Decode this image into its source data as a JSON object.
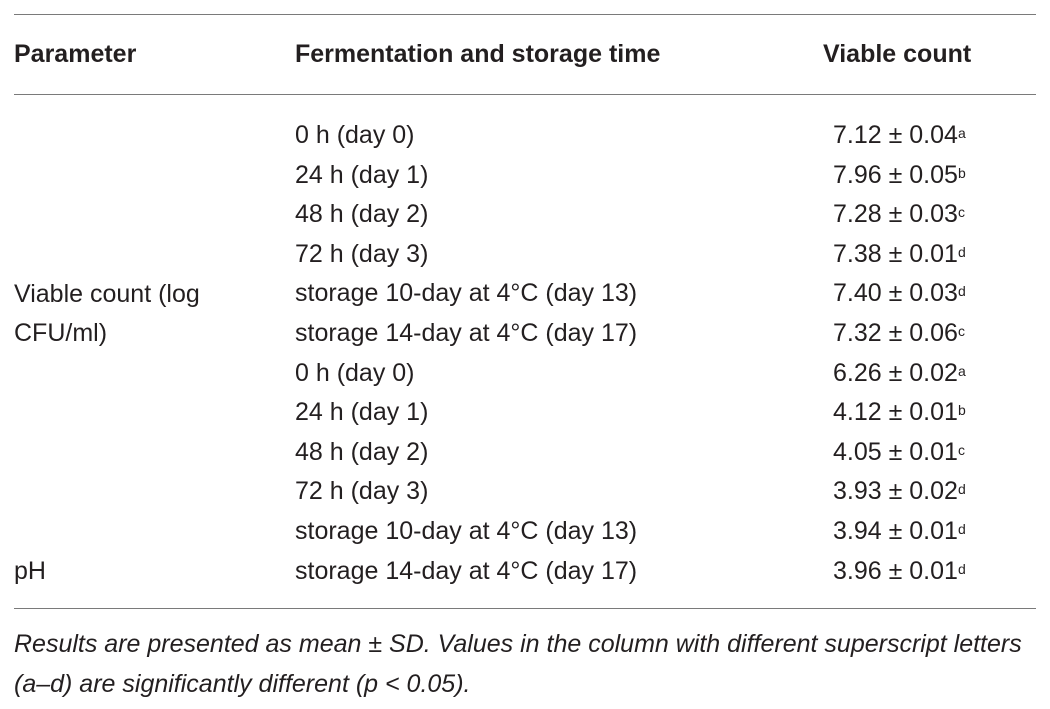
{
  "table": {
    "headers": {
      "parameter": "Parameter",
      "time": "Fermentation and storage time",
      "viable": "Viable count"
    },
    "parameter_labels": {
      "viable_line1": "Viable count (log",
      "viable_line2": "CFU/ml)",
      "ph": "pH"
    },
    "rows": [
      {
        "time": "0 h (day 0)",
        "value": "7.12 ± 0.04",
        "sup": "a"
      },
      {
        "time": "24 h (day 1)",
        "value": "7.96 ± 0.05",
        "sup": "b"
      },
      {
        "time": "48 h (day 2)",
        "value": "7.28 ± 0.03",
        "sup": "c"
      },
      {
        "time": "72 h (day 3)",
        "value": "7.38 ± 0.01",
        "sup": "d"
      },
      {
        "time": "storage 10-day at 4°C (day 13)",
        "value": "7.40 ± 0.03",
        "sup": "d"
      },
      {
        "time": "storage 14-day at 4°C (day 17)",
        "value": "7.32 ± 0.06",
        "sup": "c"
      },
      {
        "time": "0 h (day 0)",
        "value": "6.26 ± 0.02",
        "sup": "a"
      },
      {
        "time": "24 h (day 1)",
        "value": "4.12 ± 0.01",
        "sup": "b"
      },
      {
        "time": "48 h (day 2)",
        "value": "4.05 ± 0.01",
        "sup": "c"
      },
      {
        "time": "72 h (day 3)",
        "value": "3.93 ± 0.02",
        "sup": "d"
      },
      {
        "time": "storage 10-day at 4°C (day 13)",
        "value": "3.94 ± 0.01",
        "sup": "d"
      },
      {
        "time": "storage 14-day at 4°C (day 17)",
        "value": "3.96 ± 0.01",
        "sup": "d"
      }
    ],
    "footnote": "Results are presented as mean ± SD. Values in the column with different superscript letters (a–d) are significantly different (p < 0.05)."
  }
}
